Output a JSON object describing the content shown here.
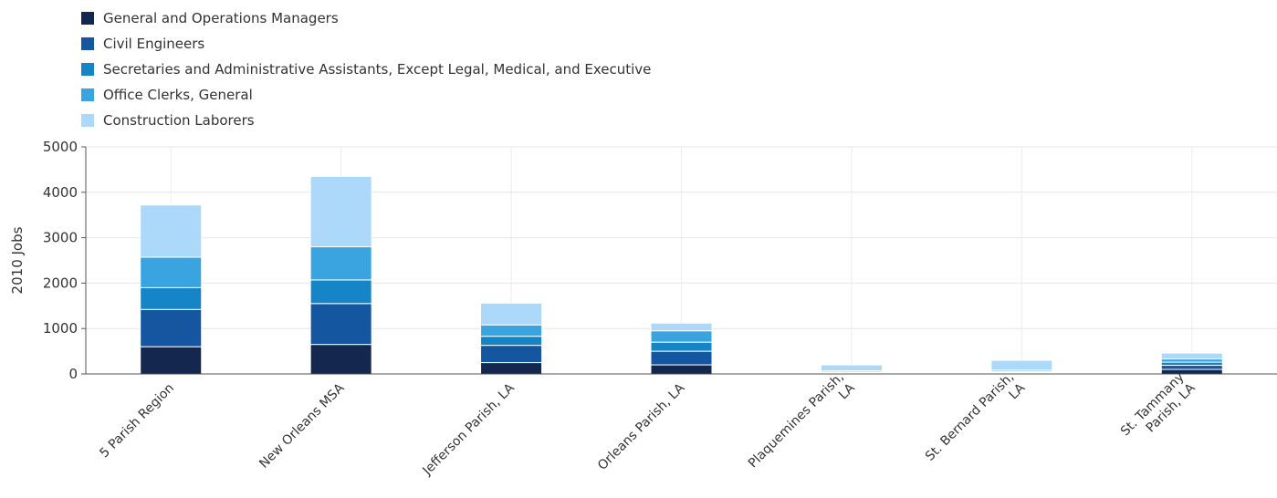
{
  "chart_data": {
    "type": "bar",
    "stacked": true,
    "ylabel": "2010 Jobs",
    "ylim": [
      0,
      5000
    ],
    "yticks": [
      0,
      1000,
      2000,
      3000,
      4000,
      5000
    ],
    "grid": true,
    "legend_position": "top-left",
    "categories": [
      [
        "5 Parish Region"
      ],
      [
        "New Orleans MSA"
      ],
      [
        "Jefferson Parish, LA"
      ],
      [
        "Orleans Parish, LA"
      ],
      [
        "Plaquemines Parish,",
        "LA"
      ],
      [
        "St. Bernard Parish,",
        "LA"
      ],
      [
        "St. Tammany",
        "Parish, LA"
      ]
    ],
    "series": [
      {
        "name": "General and Operations Managers",
        "color": "#14284f",
        "values": [
          600,
          650,
          250,
          200,
          10,
          15,
          100
        ]
      },
      {
        "name": "Civil Engineers",
        "color": "#1456a0",
        "values": [
          820,
          900,
          380,
          300,
          15,
          20,
          90
        ]
      },
      {
        "name": "Secretaries and Administrative Assistants, Except Legal, Medical, and Executive",
        "color": "#1685c8",
        "values": [
          480,
          520,
          200,
          200,
          20,
          20,
          70
        ]
      },
      {
        "name": "Office Clerks, General",
        "color": "#3aa4e0",
        "values": [
          670,
          730,
          250,
          250,
          25,
          30,
          70
        ]
      },
      {
        "name": "Construction Laborers",
        "color": "#acd8fa",
        "values": [
          1150,
          1550,
          480,
          170,
          130,
          215,
          130
        ]
      }
    ]
  }
}
